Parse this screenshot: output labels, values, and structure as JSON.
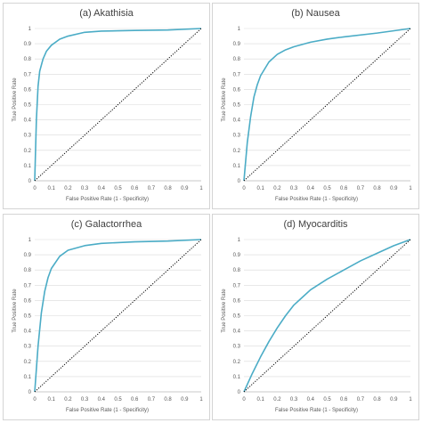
{
  "chart_data": [
    {
      "type": "line",
      "title": "(a) Akathisia",
      "xlabel": "False Positive Rate (1 - Specificity)",
      "ylabel": "True Positive Rate",
      "xlim": [
        0,
        1
      ],
      "ylim": [
        0,
        1
      ],
      "xticks": [
        "0",
        "0.1",
        "0.2",
        "0.3",
        "0.4",
        "0.5",
        "0.6",
        "0.7",
        "0.8",
        "0.9",
        "1"
      ],
      "yticks": [
        "0",
        "0.1",
        "0.2",
        "0.3",
        "0.4",
        "0.5",
        "0.6",
        "0.7",
        "0.8",
        "0.9",
        "1"
      ],
      "grid": true,
      "series": [
        {
          "style": "solid",
          "color": "#4bacc6",
          "x": [
            0,
            0.01,
            0.02,
            0.03,
            0.05,
            0.07,
            0.1,
            0.15,
            0.2,
            0.3,
            0.4,
            0.5,
            0.6,
            0.8,
            1.0
          ],
          "y": [
            0,
            0.4,
            0.62,
            0.72,
            0.8,
            0.85,
            0.89,
            0.93,
            0.95,
            0.975,
            0.983,
            0.985,
            0.987,
            0.99,
            1.0
          ]
        },
        {
          "style": "dotted",
          "color": "#000000",
          "x": [
            0,
            1
          ],
          "y": [
            0,
            1
          ]
        }
      ]
    },
    {
      "type": "line",
      "title": "(b) Nausea",
      "xlabel": "False Positive Rate (1 - Specificity)",
      "ylabel": "True Positive Rate",
      "xlim": [
        0,
        1
      ],
      "ylim": [
        0,
        1
      ],
      "xticks": [
        "0",
        "0.1",
        "0.2",
        "0.3",
        "0.4",
        "0.5",
        "0.6",
        "0.7",
        "0.8",
        "0.9",
        "1"
      ],
      "yticks": [
        "0",
        "0.1",
        "0.2",
        "0.3",
        "0.4",
        "0.5",
        "0.6",
        "0.7",
        "0.8",
        "0.9",
        "1"
      ],
      "grid": true,
      "series": [
        {
          "style": "solid",
          "color": "#4bacc6",
          "x": [
            0,
            0.02,
            0.04,
            0.06,
            0.08,
            0.1,
            0.15,
            0.2,
            0.25,
            0.3,
            0.4,
            0.5,
            0.6,
            0.8,
            1.0
          ],
          "y": [
            0,
            0.25,
            0.42,
            0.55,
            0.63,
            0.69,
            0.78,
            0.83,
            0.86,
            0.88,
            0.91,
            0.93,
            0.945,
            0.97,
            1.0
          ]
        },
        {
          "style": "dotted",
          "color": "#000000",
          "x": [
            0,
            1
          ],
          "y": [
            0,
            1
          ]
        }
      ]
    },
    {
      "type": "line",
      "title": "(c) Galactorrhea",
      "xlabel": "False Positive Rate (1 - Specificity)",
      "ylabel": "True Positive Rate",
      "xlim": [
        0,
        1
      ],
      "ylim": [
        0,
        1
      ],
      "xticks": [
        "0",
        "0.1",
        "0.2",
        "0.3",
        "0.4",
        "0.5",
        "0.6",
        "0.7",
        "0.8",
        "0.9",
        "1"
      ],
      "yticks": [
        "0",
        "0.1",
        "0.2",
        "0.3",
        "0.4",
        "0.5",
        "0.6",
        "0.7",
        "0.8",
        "0.9",
        "1"
      ],
      "grid": true,
      "series": [
        {
          "style": "solid",
          "color": "#4bacc6",
          "x": [
            0,
            0.01,
            0.02,
            0.04,
            0.06,
            0.08,
            0.1,
            0.15,
            0.2,
            0.3,
            0.4,
            0.5,
            0.6,
            0.8,
            1.0
          ],
          "y": [
            0,
            0.15,
            0.3,
            0.52,
            0.66,
            0.75,
            0.81,
            0.89,
            0.93,
            0.96,
            0.975,
            0.98,
            0.985,
            0.99,
            1.0
          ]
        },
        {
          "style": "dotted",
          "color": "#000000",
          "x": [
            0,
            1
          ],
          "y": [
            0,
            1
          ]
        }
      ]
    },
    {
      "type": "line",
      "title": "(d) Myocarditis",
      "xlabel": "False Positive Rate (1 - Specificity)",
      "ylabel": "True Positive Rate",
      "xlim": [
        0,
        1
      ],
      "ylim": [
        0,
        1
      ],
      "xticks": [
        "0",
        "0.1",
        "0.2",
        "0.3",
        "0.4",
        "0.5",
        "0.6",
        "0.7",
        "0.8",
        "0.9",
        "1"
      ],
      "yticks": [
        "0",
        "0.1",
        "0.2",
        "0.3",
        "0.4",
        "0.5",
        "0.6",
        "0.7",
        "0.8",
        "0.9",
        "1"
      ],
      "grid": true,
      "series": [
        {
          "style": "solid",
          "color": "#4bacc6",
          "x": [
            0,
            0.05,
            0.1,
            0.15,
            0.2,
            0.25,
            0.3,
            0.35,
            0.4,
            0.5,
            0.6,
            0.7,
            0.8,
            0.9,
            1.0
          ],
          "y": [
            0,
            0.12,
            0.23,
            0.33,
            0.42,
            0.5,
            0.57,
            0.62,
            0.67,
            0.74,
            0.8,
            0.86,
            0.91,
            0.96,
            1.0
          ]
        },
        {
          "style": "dotted",
          "color": "#000000",
          "x": [
            0,
            1
          ],
          "y": [
            0,
            1
          ]
        }
      ]
    }
  ]
}
